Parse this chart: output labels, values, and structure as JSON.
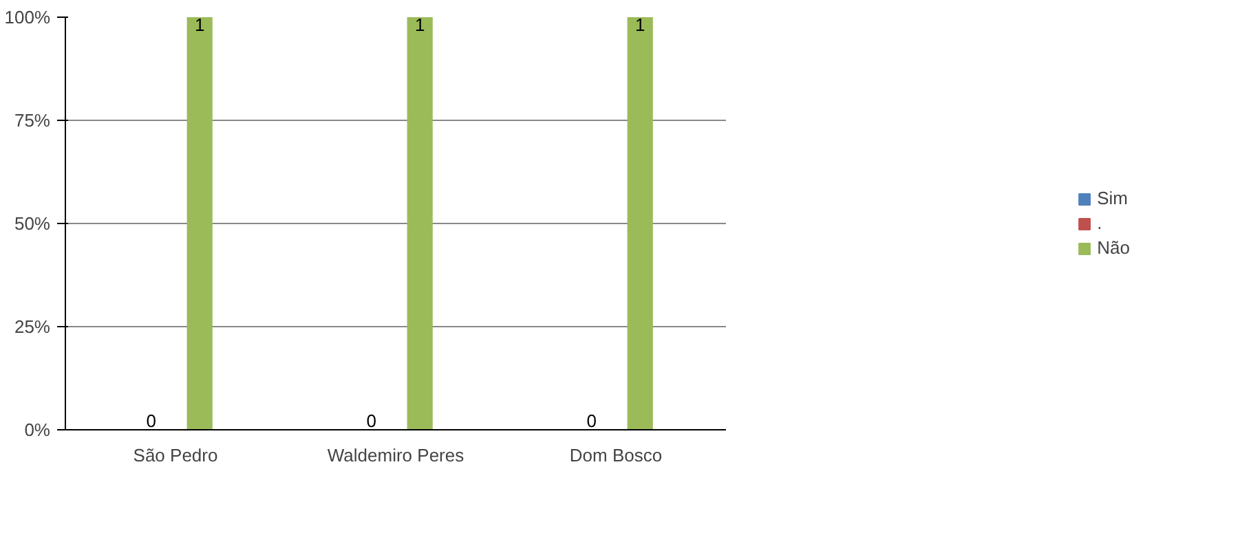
{
  "chart_data": {
    "type": "bar",
    "categories": [
      "São Pedro",
      "Waldemiro Peres",
      "Dom Bosco"
    ],
    "series": [
      {
        "name": "Sim",
        "color": "#4f81bd",
        "values": [
          0,
          0,
          0
        ]
      },
      {
        "name": ".",
        "color": "#c0504d",
        "values": [
          null,
          null,
          null
        ]
      },
      {
        "name": "Não",
        "color": "#9bbb59",
        "values": [
          1,
          1,
          1
        ]
      }
    ],
    "ylim": [
      0,
      1
    ],
    "yticks": [
      {
        "value": 0,
        "label": "0%"
      },
      {
        "value": 0.25,
        "label": "25%"
      },
      {
        "value": 0.5,
        "label": "50%"
      },
      {
        "value": 0.75,
        "label": "75%"
      },
      {
        "value": 1,
        "label": "100%"
      }
    ],
    "grid": "y",
    "legend": "right",
    "data_labels": true
  }
}
